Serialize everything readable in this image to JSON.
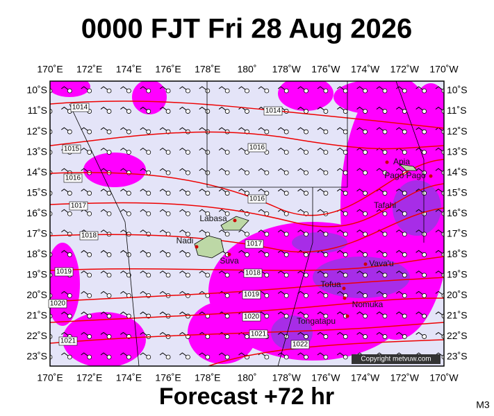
{
  "title": "0000 FJT Fri 28 Aug 2026",
  "lon_labels": [
    "170˚E",
    "172˚E",
    "174˚E",
    "176˚E",
    "178˚E",
    "180˚",
    "178˚W",
    "176˚W",
    "174˚W",
    "172˚W",
    "170˚W"
  ],
  "lat_labels": [
    "10˚S",
    "11˚S",
    "12˚S",
    "13˚S",
    "14˚S",
    "15˚S",
    "16˚S",
    "17˚S",
    "18˚S",
    "19˚S",
    "20˚S",
    "21˚S",
    "22˚S",
    "23˚S"
  ],
  "places": [
    "Labasa",
    "Nadi",
    "Suva",
    "Apia",
    "Pago Pago",
    "Tafahi",
    "Vava'u",
    "Tofua",
    "Nomuka",
    "Tongatapu"
  ],
  "isobar_labels": [
    "1014",
    "1014",
    "1015",
    "1016",
    "1016",
    "1017",
    "1016",
    "1018",
    "1017",
    "1019",
    "1018",
    "1020",
    "1019",
    "1020",
    "1021",
    "1021",
    "1022"
  ],
  "copyright": "Copyright metvuw.com",
  "footer": "Forecast +72 hr",
  "model": "M3"
}
